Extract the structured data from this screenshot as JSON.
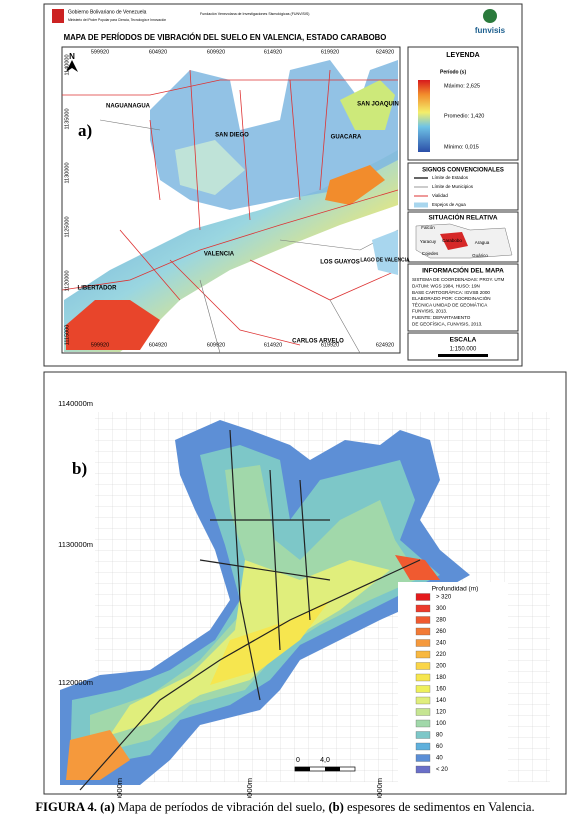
{
  "panel_a": {
    "header": {
      "gov": "Gobierno Bolivariano de Venezuela",
      "ministry": "Ministerio del Poder Popular para Ciencia, Tecnología e Innovación",
      "foundation": "Fundación Venezolana de Investigaciones Sismológicas (FUNVISIS)",
      "logo": "funvisis"
    },
    "title": "MAPA DE PERÍODOS DE VIBRACIÓN DEL SUELO EN VALENCIA, ESTADO CARABOBO",
    "label": "a)",
    "north": "N",
    "x_coords": [
      "599920",
      "604920",
      "609920",
      "614920",
      "619920",
      "624920"
    ],
    "y_coords": [
      "1140000",
      "1135000",
      "1130000",
      "1125000",
      "1120000",
      "1115000"
    ],
    "places": [
      "NAGUANAGUA",
      "SAN DIEGO",
      "SAN JOAQUIN",
      "GUACARA",
      "VALENCIA",
      "LOS GUAYOS",
      "LAGO DE VALENCIA",
      "LIBERTADOR",
      "CARLOS ARVELO"
    ],
    "legend": {
      "title": "LEYENDA",
      "variable": "Período (s)",
      "max": "Máximo: 2,625",
      "mean": "Promedio: 1,420",
      "min": "Mínimo: 0,015"
    },
    "signs": {
      "title": "SIGNOS CONVENCIONALES",
      "items": [
        "Límite de Estados",
        "Límite de Municipios",
        "Vialidad",
        "Espejos de Agua"
      ]
    },
    "situation": {
      "title": "SITUACIÓN RELATIVA",
      "places": [
        "Falcón",
        "Yaracuy",
        "Carabobo",
        "Aragua",
        "Cojedes",
        "Guárico"
      ]
    },
    "info": {
      "title": "INFORMACIÓN DEL MAPA",
      "lines": [
        "SISTEMA DE COORDENADAS: PROY. UTM",
        "DATUM: WGS 1984, HUSO: 19N",
        "BASE CARTOGRÁFICA: IGVSB 2000",
        "ELABORADO POR: COORDINACIÓN",
        "TÉCNICA UNIDAD DE GEOMÁTICA",
        "FUNVISIS, 2013.",
        "FUENTE: DEPARTAMENTO",
        "DE GEOFÍSICA, FUNVISIS, 2013."
      ]
    },
    "scale": {
      "title": "ESCALA",
      "value": "1:150.000"
    }
  },
  "panel_b": {
    "label": "b)",
    "y_coords": [
      "1140000m",
      "1130000m",
      "1120000m"
    ],
    "x_coords": [
      "500000m",
      "510000m",
      "520000m"
    ],
    "legend": {
      "title": "Profundidad (m)",
      "items": [
        {
          "label": "> 320",
          "color": "#e41a1c"
        },
        {
          "label": "300",
          "color": "#ec3a2c"
        },
        {
          "label": "280",
          "color": "#f05a30"
        },
        {
          "label": "260",
          "color": "#f27a35"
        },
        {
          "label": "240",
          "color": "#f5993c"
        },
        {
          "label": "220",
          "color": "#f8b840"
        },
        {
          "label": "200",
          "color": "#fad547"
        },
        {
          "label": "180",
          "color": "#f6e64f"
        },
        {
          "label": "160",
          "color": "#eef05a"
        },
        {
          "label": "140",
          "color": "#e0ee7c"
        },
        {
          "label": "120",
          "color": "#c6e592"
        },
        {
          "label": "100",
          "color": "#a1d8aa"
        },
        {
          "label": "80",
          "color": "#7dc7c8"
        },
        {
          "label": "60",
          "color": "#5fb0dc"
        },
        {
          "label": "40",
          "color": "#5b8ed6"
        },
        {
          "label": "< 20",
          "color": "#6a6fc8"
        }
      ]
    },
    "scale": {
      "start": "0",
      "end": "4,0"
    }
  },
  "caption": {
    "parts": [
      "FIGURA 4.",
      "(a)",
      "Mapa de períodos de vibración del suelo,",
      "(b)",
      "espesores de sedimentos en Valencia."
    ]
  }
}
